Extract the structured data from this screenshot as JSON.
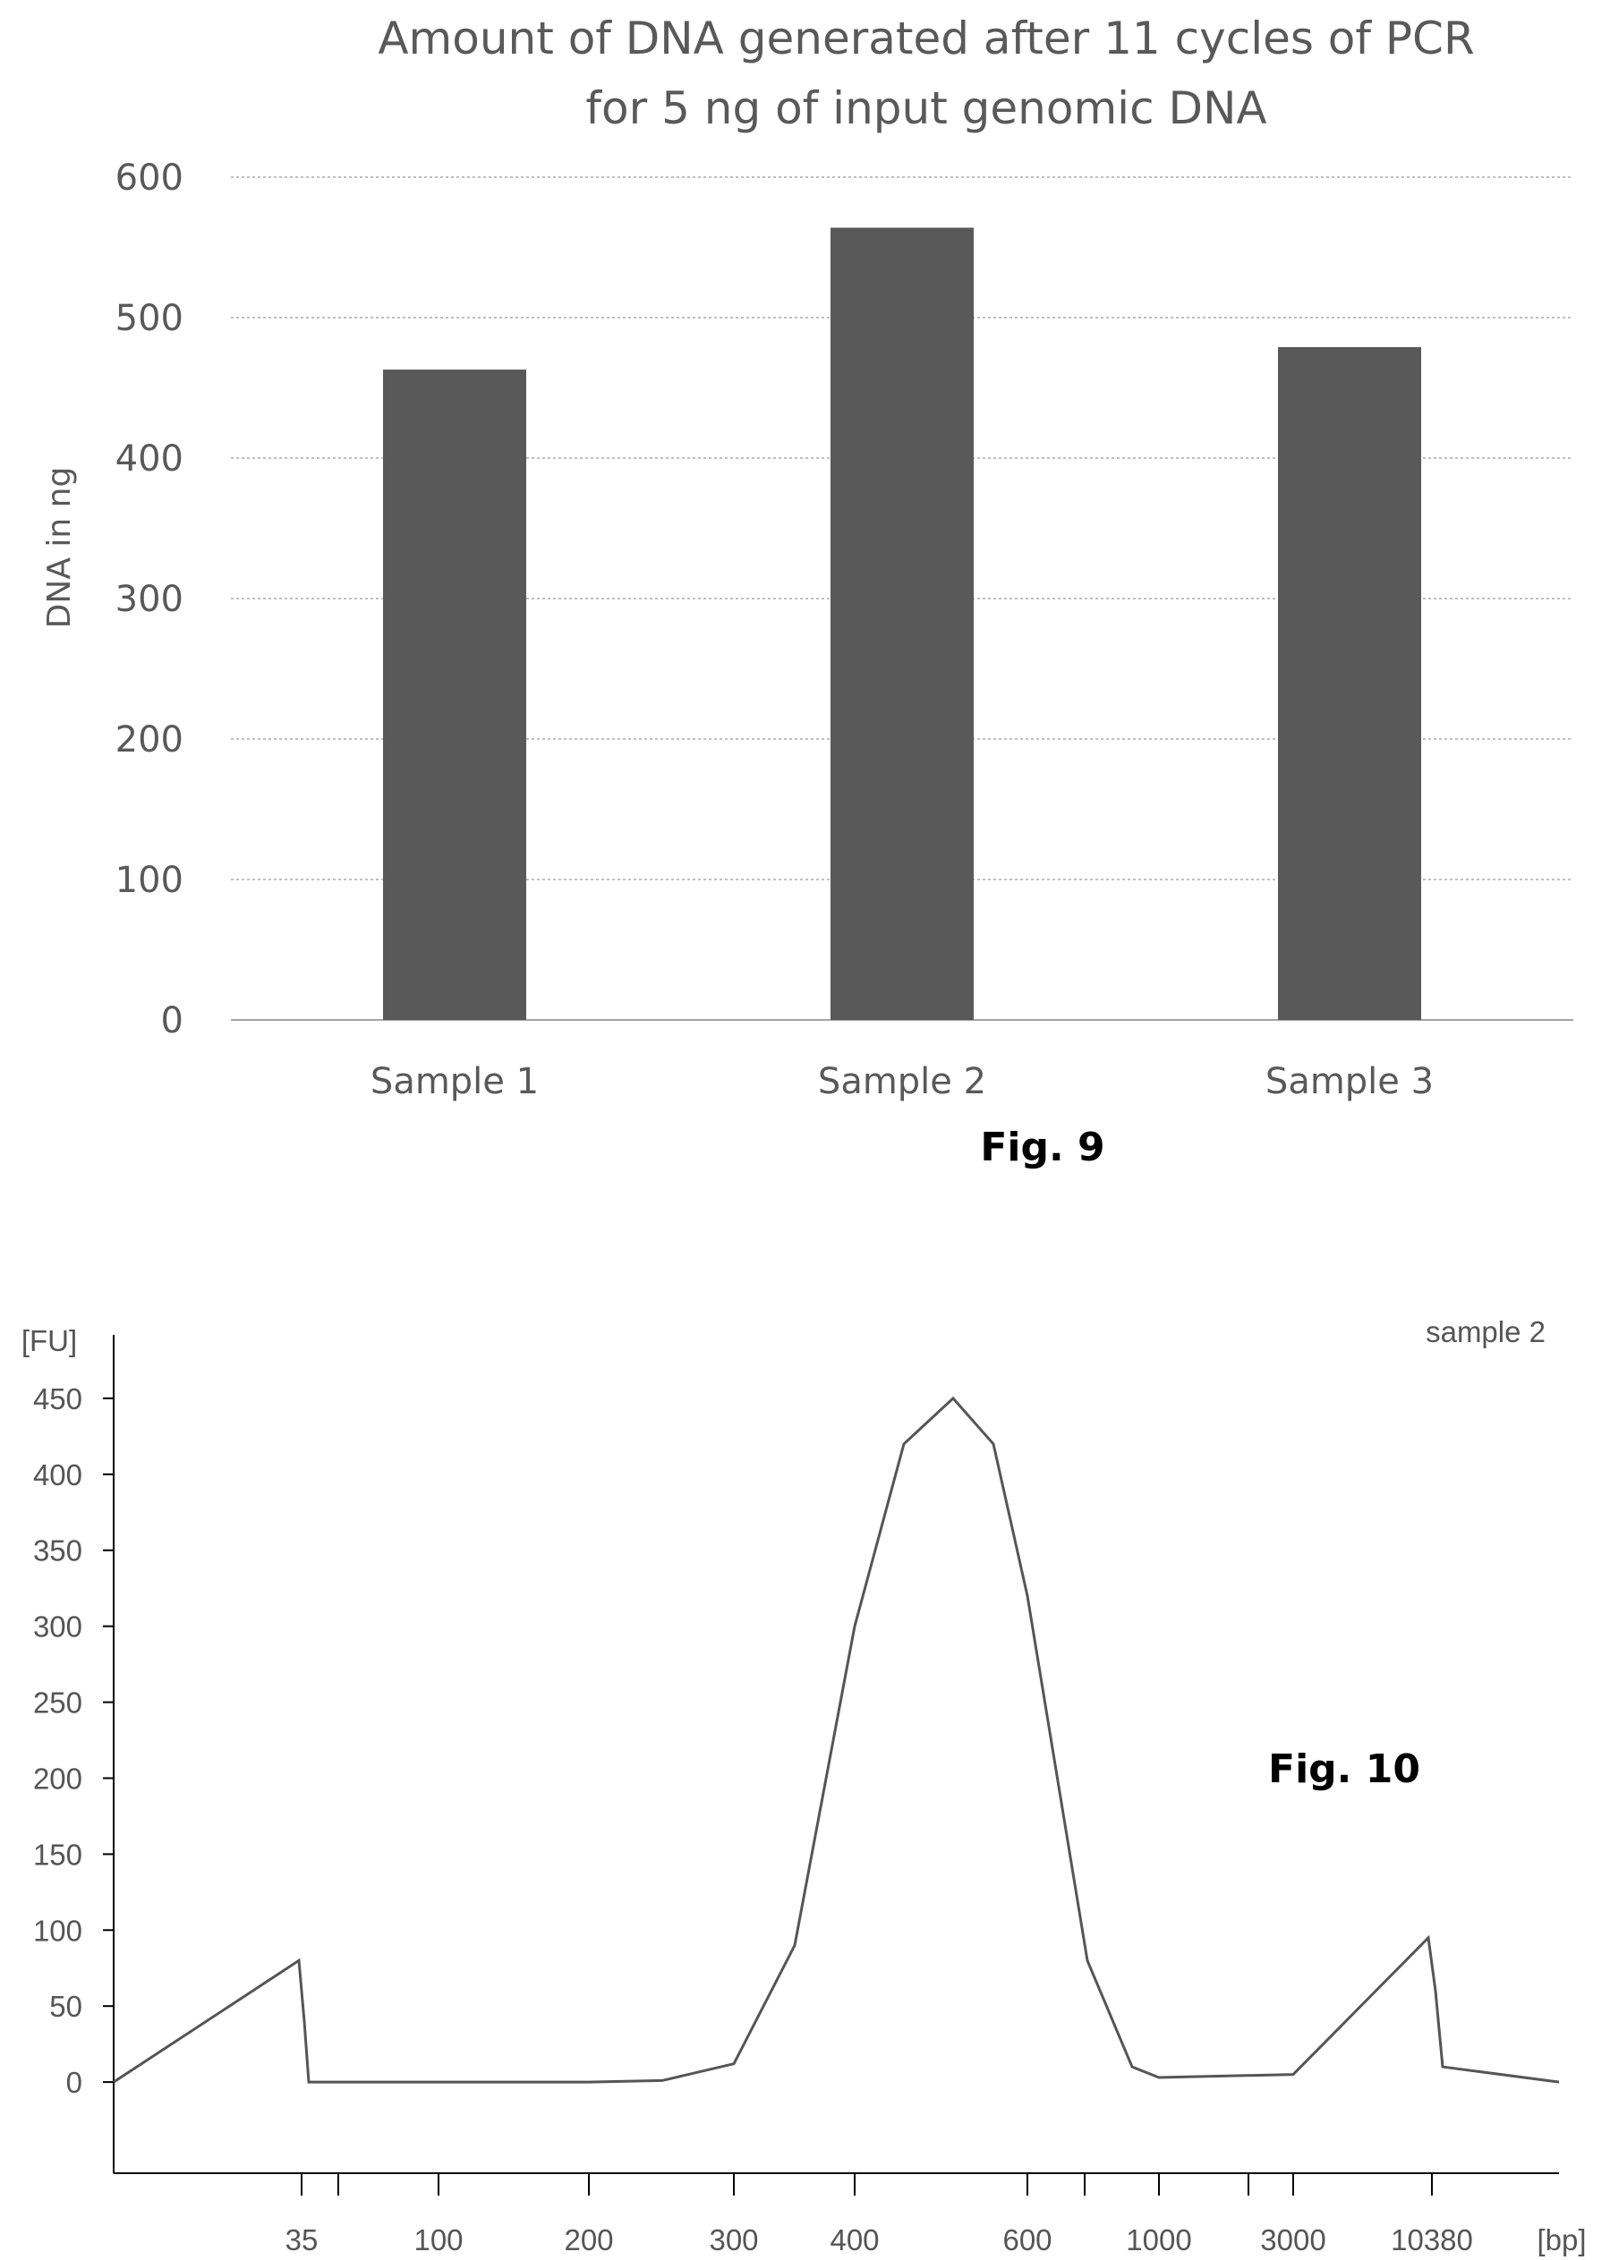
{
  "chart_data": [
    {
      "type": "bar",
      "title_lines": [
        "Amount of DNA generated after 11 cycles of PCR",
        "for 5 ng of input genomic DNA"
      ],
      "xlabel": "",
      "ylabel": "DNA in ng",
      "categories": [
        "Sample 1",
        "Sample 2",
        "Sample 3"
      ],
      "values": [
        463,
        564,
        479
      ],
      "ylim": [
        0,
        600
      ],
      "yticks": [
        0,
        100,
        200,
        300,
        400,
        500,
        600
      ],
      "ytick_labels": [
        "0",
        "100",
        "200",
        "300",
        "400",
        "500",
        "600"
      ],
      "grid": true,
      "bar_color": "#595959",
      "figure_label": "Fig. 9"
    },
    {
      "type": "line",
      "xlabel": "[bp]",
      "ylabel": "[FU]",
      "series_label": "sample 2",
      "figure_label": "Fig. 10",
      "ylim": [
        -60,
        490
      ],
      "yticks": [
        0,
        50,
        100,
        150,
        200,
        250,
        300,
        350,
        400,
        450
      ],
      "ytick_labels": [
        "0",
        "50",
        "100",
        "150",
        "200",
        "250",
        "300",
        "350",
        "400",
        "450"
      ],
      "xtick_labels": [
        "35",
        "100",
        "200",
        "300",
        "400",
        "600",
        "1000",
        "3000",
        "10380"
      ],
      "x": [
        "<35",
        "35",
        "35",
        "35",
        "100",
        "200",
        "250",
        "300",
        "350",
        "400",
        "450",
        "500",
        "550",
        "600",
        "700",
        "900",
        "1000",
        "3000",
        "10380",
        "10380",
        "10380",
        ">10380"
      ],
      "y": [
        0,
        80,
        40,
        0,
        0,
        0,
        1,
        12,
        90,
        300,
        420,
        450,
        420,
        320,
        80,
        10,
        3,
        5,
        95,
        60,
        10,
        0
      ],
      "line_color": "#555555"
    }
  ]
}
